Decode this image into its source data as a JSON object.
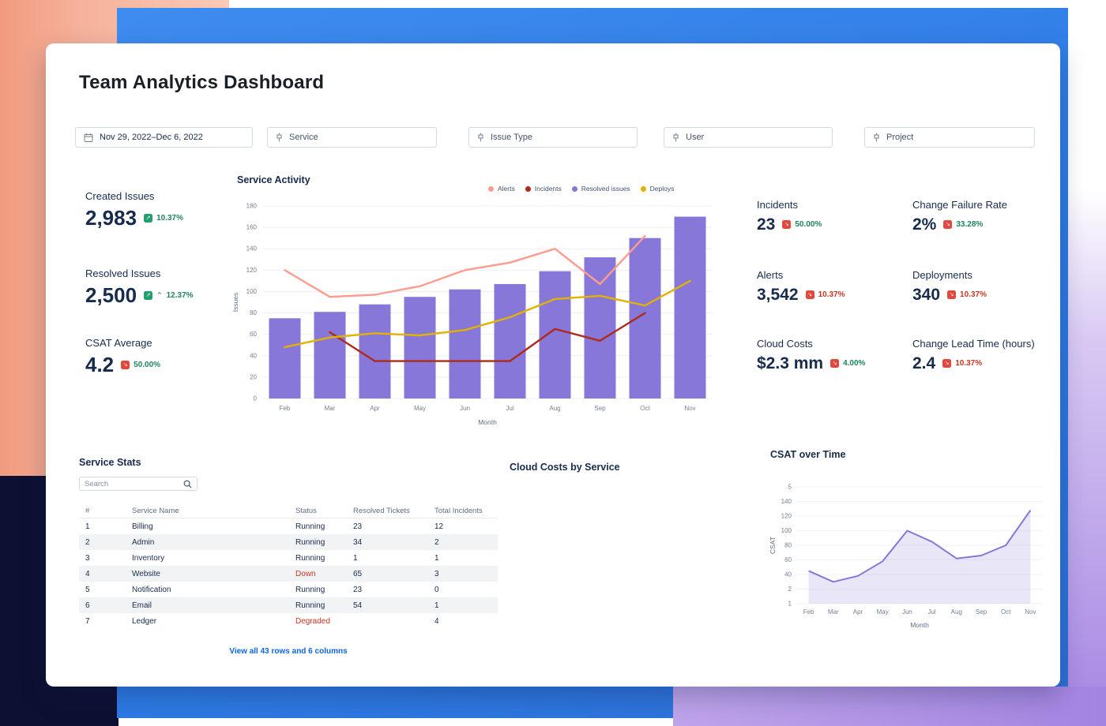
{
  "page": {
    "title": "Team Analytics Dashboard"
  },
  "filters": {
    "date_range": "Nov 29, 2022–Dec 6, 2022",
    "dropdowns": [
      {
        "label": "Service"
      },
      {
        "label": "Issue Type"
      },
      {
        "label": "User"
      },
      {
        "label": "Project"
      }
    ]
  },
  "colors": {
    "positive_text": "#1f845a",
    "negative_text": "#ca3521",
    "positive_icon": "#22a06b",
    "negative_icon": "#e2483d",
    "bar_purple": "#8777d9",
    "link_blue": "#0c66e4"
  },
  "kpis_left": [
    {
      "label": "Created Issues",
      "value": "2,983",
      "delta": "10.37%",
      "icon": "green-up",
      "icon_color": "#22a06b",
      "delta_color": "#1f845a",
      "caret": false
    },
    {
      "label": "Resolved Issues",
      "value": "2,500",
      "delta": "12.37%",
      "icon": "green-up",
      "icon_color": "#22a06b",
      "delta_color": "#1f845a",
      "caret": true
    },
    {
      "label": "CSAT Average",
      "value": "4.2",
      "delta": "50.00%",
      "icon": "red-down",
      "icon_color": "#e2483d",
      "delta_color": "#1f845a",
      "caret": false
    }
  ],
  "kpis_right": [
    {
      "label": "Incidents",
      "value": "23",
      "delta": "50.00%",
      "icon": "red-down",
      "icon_color": "#e2483d",
      "delta_color": "#1f845a"
    },
    {
      "label": "Change Failure Rate",
      "value": "2%",
      "delta": "33.28%",
      "icon": "red-down",
      "icon_color": "#e2483d",
      "delta_color": "#1f845a"
    },
    {
      "label": "Alerts",
      "value": "3,542",
      "delta": "10.37%",
      "icon": "red-down",
      "icon_color": "#e2483d",
      "delta_color": "#ca3521"
    },
    {
      "label": "Deployments",
      "value": "340",
      "delta": "10.37%",
      "icon": "red-down",
      "icon_color": "#e2483d",
      "delta_color": "#ca3521"
    },
    {
      "label": "Cloud Costs",
      "value": "$2.3 mm",
      "delta": "4.00%",
      "icon": "red-down",
      "icon_color": "#e2483d",
      "delta_color": "#1f845a"
    },
    {
      "label": "Change Lead Time (hours)",
      "value": "2.4",
      "delta": "10.37%",
      "icon": "red-down",
      "icon_color": "#e2483d",
      "delta_color": "#ca3521"
    }
  ],
  "chart_data": [
    {
      "type": "bar",
      "title": "Service Activity",
      "categories": [
        "Feb",
        "Mar",
        "Apr",
        "May",
        "Jun",
        "Jul",
        "Aug",
        "Sep",
        "Oct",
        "Nov"
      ],
      "xlabel": "Month",
      "ylabel": "Issues",
      "ylim": [
        0,
        180
      ],
      "ytick_step": 20,
      "grid": true,
      "legend_position": "top-right",
      "bar_series": {
        "name": "Resolved issues",
        "color": "#8777d9",
        "values": [
          75,
          81,
          88,
          95,
          102,
          107,
          119,
          132,
          150,
          170
        ]
      },
      "line_series": [
        {
          "name": "Alerts",
          "color": "#ff9c8f",
          "values": [
            120,
            95,
            97,
            105,
            120,
            127,
            140,
            107,
            152,
            null
          ]
        },
        {
          "name": "Incidents",
          "color": "#ae2a19",
          "values": [
            null,
            62,
            35,
            35,
            35,
            35,
            65,
            54,
            80,
            null
          ]
        },
        {
          "name": "Deploys",
          "color": "#e2b203",
          "values": [
            48,
            57,
            61,
            59,
            64,
            76,
            93,
            96,
            87,
            110
          ]
        }
      ],
      "legend": [
        {
          "label": "Alerts",
          "color": "#ff9c8f"
        },
        {
          "label": "Incidents",
          "color": "#ae2a19"
        },
        {
          "label": "Resolved issues",
          "color": "#8777d9"
        },
        {
          "label": "Deploys",
          "color": "#e2b203"
        }
      ]
    },
    {
      "type": "area",
      "title": "CSAT over Time",
      "categories": [
        "Feb",
        "Mar",
        "Apr",
        "May",
        "Jun",
        "Jul",
        "Aug",
        "Sep",
        "Oct",
        "Nov"
      ],
      "xlabel": "Month",
      "ylabel": "CSAT",
      "ylim": [
        0,
        160
      ],
      "ytick_labels": [
        "5",
        "140",
        "120",
        "100",
        "80",
        "60",
        "40",
        "2",
        "1"
      ],
      "series": [
        {
          "name": "CSAT",
          "color": "#8777d9",
          "values": [
            45,
            30,
            38,
            58,
            100,
            85,
            62,
            66,
            80,
            128
          ]
        }
      ]
    }
  ],
  "service_stats": {
    "title": "Service Stats",
    "search_placeholder": "Search",
    "columns": [
      "#",
      "Service Name",
      "Status",
      "Resolved Tickets",
      "Total Incidents"
    ],
    "rows": [
      {
        "num": "1",
        "name": "Billing",
        "status": "Running",
        "status_color": "#172b4d",
        "resolved": "23",
        "incidents": "12"
      },
      {
        "num": "2",
        "name": "Admin",
        "status": "Running",
        "status_color": "#172b4d",
        "resolved": "34",
        "incidents": "2"
      },
      {
        "num": "3",
        "name": "Inventory",
        "status": "Running",
        "status_color": "#172b4d",
        "resolved": "1",
        "incidents": "1"
      },
      {
        "num": "4",
        "name": "Website",
        "status": "Down",
        "status_color": "#ca3521",
        "resolved": "65",
        "incidents": "3"
      },
      {
        "num": "5",
        "name": "Notification",
        "status": "Running",
        "status_color": "#172b4d",
        "resolved": "23",
        "incidents": "0"
      },
      {
        "num": "6",
        "name": "Email",
        "status": "Running",
        "status_color": "#172b4d",
        "resolved": "54",
        "incidents": "1"
      },
      {
        "num": "7",
        "name": "Ledger",
        "status": "Degraded",
        "status_color": "#ca3521",
        "resolved": "",
        "incidents": "4"
      }
    ],
    "footer_link": "View all 43 rows and 6 columns"
  },
  "cloud_costs_section": {
    "title": "Cloud Costs by Service"
  }
}
